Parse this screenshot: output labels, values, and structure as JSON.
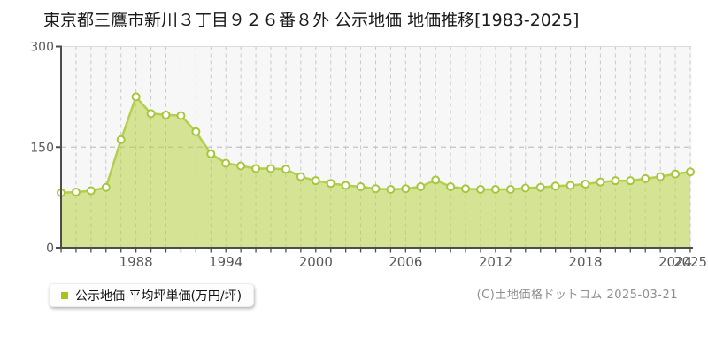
{
  "page": {
    "title": "東京都三鷹市新川３丁目９２６番８外 公示地価 地価推移[1983-2025]",
    "copyright": "(C)土地価格ドットコム 2025-03-21"
  },
  "legend": {
    "label": "公示地価 平均坪単価(万円/坪)",
    "swatch_color": "#a3c716"
  },
  "chart_data": {
    "type": "area",
    "title": "東京都三鷹市新川３丁目９２６番８外 公示地価 地価推移[1983-2025]",
    "series_name": "公示地価 平均坪単価(万円/坪)",
    "unit": "万円/坪",
    "x": [
      1983,
      1984,
      1985,
      1986,
      1987,
      1988,
      1989,
      1990,
      1991,
      1992,
      1993,
      1994,
      1995,
      1996,
      1997,
      1998,
      1999,
      2000,
      2001,
      2002,
      2003,
      2004,
      2005,
      2006,
      2007,
      2008,
      2009,
      2010,
      2011,
      2012,
      2013,
      2014,
      2015,
      2016,
      2017,
      2018,
      2019,
      2020,
      2021,
      2022,
      2023,
      2024,
      2025
    ],
    "values": [
      82,
      83,
      85,
      90,
      161,
      225,
      200,
      198,
      197,
      173,
      140,
      126,
      122,
      118,
      118,
      117,
      106,
      100,
      96,
      93,
      91,
      88,
      87,
      88,
      91,
      101,
      91,
      88,
      87,
      87,
      87,
      89,
      90,
      92,
      93,
      95,
      98,
      100,
      100,
      103,
      106,
      110,
      113
    ],
    "ylim": [
      0,
      300
    ],
    "yticks": [
      0,
      150,
      300
    ],
    "xtick_labels": [
      1988,
      1994,
      2000,
      2006,
      2012,
      2018,
      2024,
      2025
    ],
    "grid": "vertical dashed line per year; horizontal dashed line at 150; light top border",
    "legend_position": "bottom-left",
    "marker": "white circle with green ring",
    "colors": {
      "plot_bg": "#f7f7f7",
      "area_fill": "rgba(180,210,50,0.5)",
      "line": "#b2cf4e",
      "point_fill": "#ffffff",
      "point_stroke": "#a6c73d",
      "gridline": "#c9c9c9",
      "grid150": "#c4c4c4",
      "top_border": "#dcdcdc",
      "axis": "#4d4d4d",
      "axis_text": "#595959"
    }
  }
}
